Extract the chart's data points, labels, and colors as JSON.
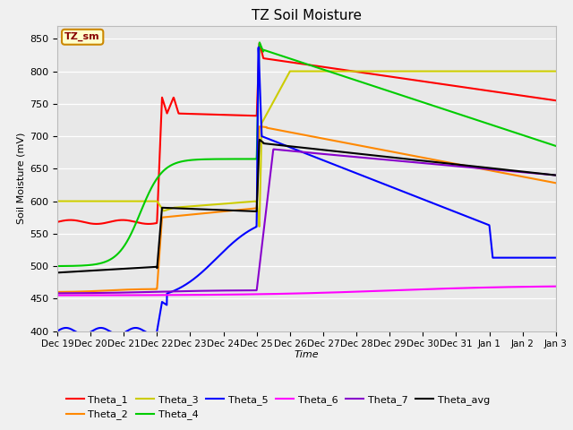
{
  "title": "TZ Soil Moisture",
  "xlabel": "Time",
  "ylabel": "Soil Moisture (mV)",
  "ylim": [
    400,
    870
  ],
  "yticks": [
    400,
    450,
    500,
    550,
    600,
    650,
    700,
    750,
    800,
    850
  ],
  "figsize": [
    6.4,
    4.8
  ],
  "dpi": 100,
  "fig_facecolor": "#f0f0f0",
  "ax_facecolor": "#e8e8e8",
  "legend_label": "TZ_sm",
  "series_colors": {
    "Theta_1": "#ff0000",
    "Theta_2": "#ff8800",
    "Theta_3": "#cccc00",
    "Theta_4": "#00cc00",
    "Theta_5": "#0000ff",
    "Theta_6": "#ff00ff",
    "Theta_7": "#8800cc",
    "Theta_avg": "#000000"
  },
  "x_labels": [
    "Dec 19",
    "Dec 20",
    "Dec 21",
    "Dec 22",
    "Dec 23",
    "Dec 24",
    "Dec 25",
    "Dec 26",
    "Dec 27",
    "Dec 28",
    "Dec 29",
    "Dec 30",
    "Dec 31",
    "Jan 1",
    "Jan 2",
    "Jan 3"
  ],
  "n_points": 2000
}
